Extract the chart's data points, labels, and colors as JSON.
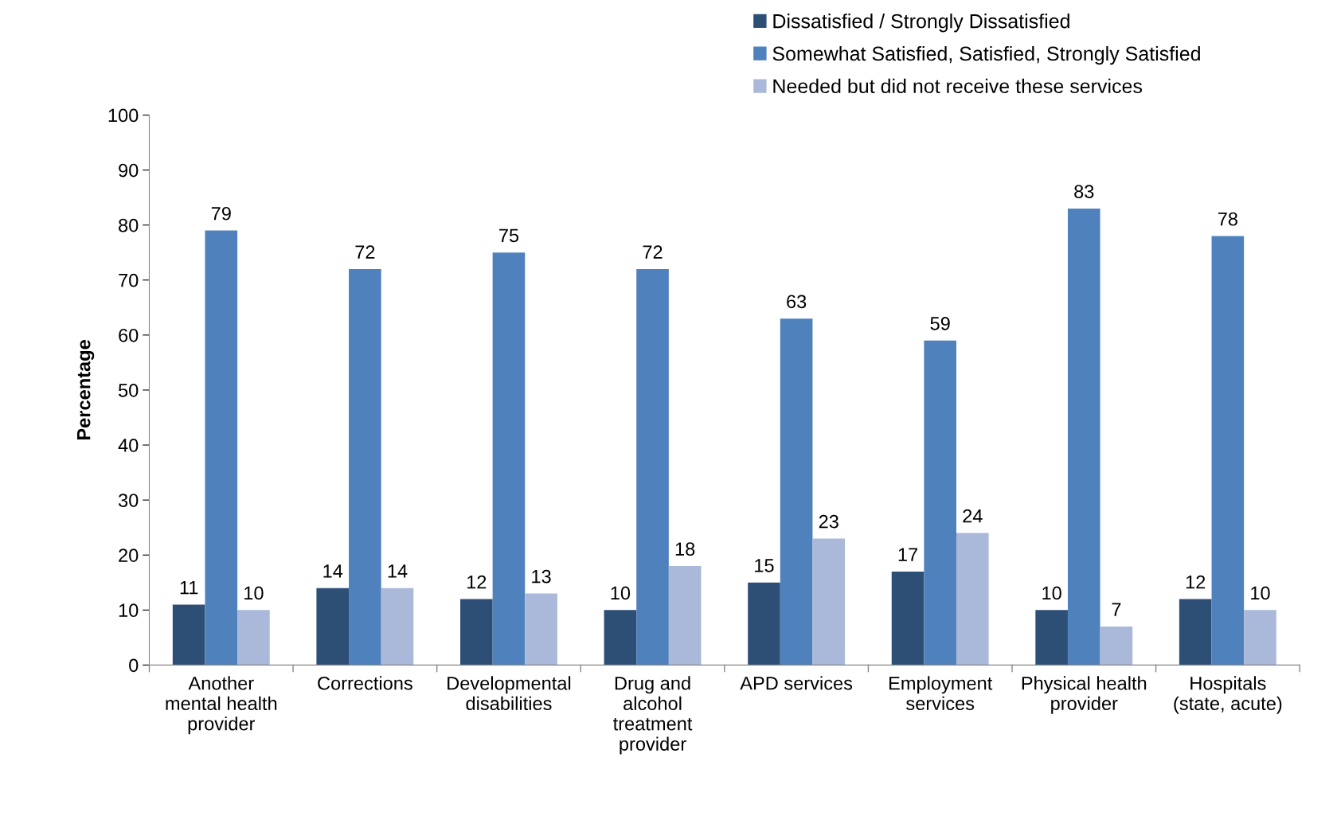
{
  "chart_data": {
    "type": "bar",
    "ylabel": "Percentage",
    "categories": [
      "Another\nmental health\nprovider",
      "Corrections",
      "Developmental\ndisabilities",
      "Drug and\nalcohol\ntreatment\nprovider",
      "APD services",
      "Employment\nservices",
      "Physical health\nprovider",
      "Hospitals\n(state, acute)"
    ],
    "series": [
      {
        "name": "Dissatisfied / Strongly Dissatisfied",
        "color": "#2e4f75",
        "values": [
          11,
          14,
          12,
          10,
          15,
          17,
          10,
          12
        ]
      },
      {
        "name": "Somewhat Satisfied, Satisfied, Strongly Satisfied",
        "color": "#4f81bd",
        "values": [
          79,
          72,
          75,
          72,
          63,
          59,
          83,
          78
        ]
      },
      {
        "name": "Needed but did not receive these services",
        "color": "#aab9d9",
        "values": [
          10,
          14,
          13,
          18,
          23,
          24,
          7,
          10
        ]
      }
    ],
    "ylim": [
      0,
      100
    ],
    "yticks": [
      0,
      10,
      20,
      30,
      40,
      50,
      60,
      70,
      80,
      90,
      100
    ],
    "data_labels": true,
    "legend": "top right",
    "grid": false
  }
}
